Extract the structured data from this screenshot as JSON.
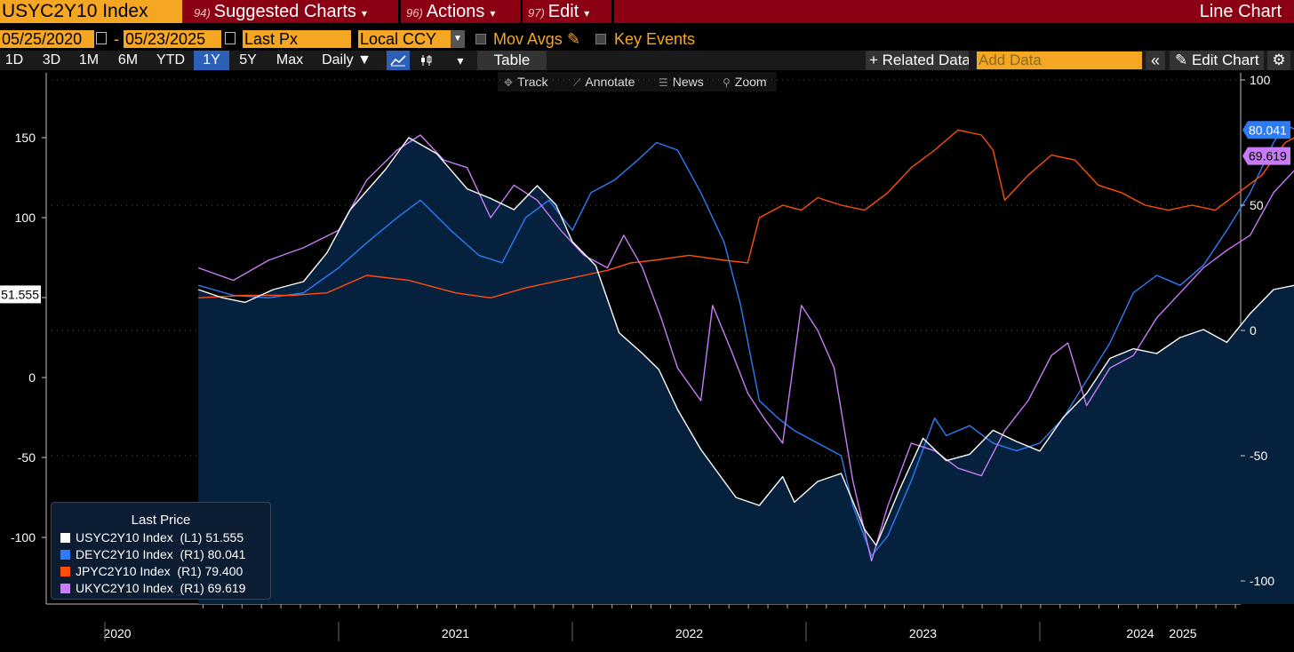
{
  "header": {
    "ticker": "USYC2Y10 Index",
    "menus": [
      {
        "num": "94)",
        "label": "Suggested Charts"
      },
      {
        "num": "96)",
        "label": "Actions"
      },
      {
        "num": "97)",
        "label": "Edit"
      }
    ],
    "chart_type": "Line Chart"
  },
  "options": {
    "start_date": "05/25/2020",
    "end_date": "05/23/2025",
    "date_sep": "-",
    "field": "Last Px",
    "currency": "Local CCY",
    "mov_avgs": "Mov Avgs",
    "key_events": "Key Events"
  },
  "toolbar": {
    "periods": [
      "1D",
      "3D",
      "1M",
      "6M",
      "YTD",
      "1Y",
      "5Y",
      "Max"
    ],
    "active_period": "1Y",
    "frequency": "Daily ▼",
    "table": "Table",
    "related": "+ Related Data",
    "add_data_placeholder": "Add Data",
    "edit_chart": "Edit Chart"
  },
  "tools": [
    {
      "icon": "✥",
      "label": "Track"
    },
    {
      "icon": "⟋",
      "label": "Annotate"
    },
    {
      "icon": "☰",
      "label": "News"
    },
    {
      "icon": "⚲",
      "label": "Zoom"
    }
  ],
  "colors": {
    "us": "#ffffff",
    "de": "#2d7cf6",
    "jp": "#ff4d0d",
    "uk": "#c77cf5",
    "area": "#06213d",
    "accent": "#f5a623",
    "header": "#8b0012"
  },
  "chart_data": {
    "type": "line",
    "title": "Line Chart",
    "x_labels": [
      "2020",
      "2021",
      "2022",
      "2023",
      "2024",
      "2025"
    ],
    "x_start": 2020.4,
    "x_end": 2025.4,
    "left_axis": {
      "ticks": [
        150,
        100,
        50,
        0,
        -50,
        -100
      ],
      "range": [
        -130,
        180
      ]
    },
    "right_axis": {
      "ticks": [
        100,
        50,
        0,
        -50,
        -100
      ],
      "range": [
        -110,
        100
      ]
    },
    "legend_title": "Last Price",
    "last_value_tags": {
      "left": "51.555",
      "right": [
        "80.041",
        "69.619"
      ]
    },
    "series": [
      {
        "name": "USYC2Y10 Index",
        "axis": "L1",
        "last": "51.555",
        "color_key": "us",
        "area": true,
        "points": [
          [
            2020.4,
            55
          ],
          [
            2020.5,
            50
          ],
          [
            2020.6,
            47
          ],
          [
            2020.72,
            55
          ],
          [
            2020.85,
            60
          ],
          [
            2020.95,
            78
          ],
          [
            2021.05,
            105
          ],
          [
            2021.2,
            130
          ],
          [
            2021.3,
            150
          ],
          [
            2021.42,
            140
          ],
          [
            2021.55,
            118
          ],
          [
            2021.65,
            112
          ],
          [
            2021.75,
            105
          ],
          [
            2021.85,
            120
          ],
          [
            2021.93,
            108
          ],
          [
            2022.0,
            85
          ],
          [
            2022.1,
            70
          ],
          [
            2022.2,
            28
          ],
          [
            2022.3,
            15
          ],
          [
            2022.37,
            5
          ],
          [
            2022.45,
            -20
          ],
          [
            2022.55,
            -45
          ],
          [
            2022.7,
            -75
          ],
          [
            2022.8,
            -80
          ],
          [
            2022.9,
            -62
          ],
          [
            2022.95,
            -78
          ],
          [
            2023.05,
            -65
          ],
          [
            2023.15,
            -60
          ],
          [
            2023.25,
            -95
          ],
          [
            2023.3,
            -105
          ],
          [
            2023.4,
            -70
          ],
          [
            2023.5,
            -38
          ],
          [
            2023.6,
            -52
          ],
          [
            2023.7,
            -48
          ],
          [
            2023.8,
            -33
          ],
          [
            2023.9,
            -40
          ],
          [
            2024.0,
            -46
          ],
          [
            2024.1,
            -25
          ],
          [
            2024.2,
            -10
          ],
          [
            2024.3,
            12
          ],
          [
            2024.4,
            18
          ],
          [
            2024.5,
            15
          ],
          [
            2024.6,
            25
          ],
          [
            2024.7,
            30
          ],
          [
            2024.8,
            22
          ],
          [
            2024.9,
            40
          ],
          [
            2025.0,
            55
          ],
          [
            2025.1,
            58
          ],
          [
            2025.2,
            46
          ],
          [
            2025.3,
            52
          ]
        ]
      },
      {
        "name": "DEYC2Y10 Index",
        "axis": "R1",
        "last": "80.041",
        "color_key": "de",
        "points": [
          [
            2020.4,
            18
          ],
          [
            2020.55,
            14
          ],
          [
            2020.7,
            13
          ],
          [
            2020.85,
            15
          ],
          [
            2021.0,
            25
          ],
          [
            2021.12,
            35
          ],
          [
            2021.25,
            45
          ],
          [
            2021.35,
            52
          ],
          [
            2021.48,
            40
          ],
          [
            2021.6,
            30
          ],
          [
            2021.7,
            27
          ],
          [
            2021.8,
            45
          ],
          [
            2021.9,
            52
          ],
          [
            2022.0,
            40
          ],
          [
            2022.08,
            55
          ],
          [
            2022.18,
            60
          ],
          [
            2022.28,
            68
          ],
          [
            2022.36,
            75
          ],
          [
            2022.45,
            72
          ],
          [
            2022.55,
            55
          ],
          [
            2022.65,
            35
          ],
          [
            2022.72,
            10
          ],
          [
            2022.8,
            -28
          ],
          [
            2022.88,
            -35
          ],
          [
            2022.95,
            -40
          ],
          [
            2023.05,
            -45
          ],
          [
            2023.15,
            -50
          ],
          [
            2023.2,
            -70
          ],
          [
            2023.28,
            -90
          ],
          [
            2023.35,
            -82
          ],
          [
            2023.45,
            -60
          ],
          [
            2023.55,
            -35
          ],
          [
            2023.6,
            -42
          ],
          [
            2023.7,
            -38
          ],
          [
            2023.8,
            -45
          ],
          [
            2023.9,
            -48
          ],
          [
            2024.0,
            -45
          ],
          [
            2024.1,
            -35
          ],
          [
            2024.2,
            -20
          ],
          [
            2024.3,
            -5
          ],
          [
            2024.4,
            15
          ],
          [
            2024.5,
            22
          ],
          [
            2024.6,
            18
          ],
          [
            2024.7,
            26
          ],
          [
            2024.8,
            40
          ],
          [
            2024.9,
            55
          ],
          [
            2025.0,
            75
          ],
          [
            2025.05,
            82
          ],
          [
            2025.15,
            78
          ],
          [
            2025.25,
            80
          ],
          [
            2025.3,
            80.041
          ]
        ]
      },
      {
        "name": "JPYC2Y10 Index",
        "axis": "R1",
        "last": "79.400",
        "color_key": "jp",
        "points": [
          [
            2020.4,
            13
          ],
          [
            2020.6,
            14
          ],
          [
            2020.8,
            14
          ],
          [
            2020.95,
            15
          ],
          [
            2021.12,
            22
          ],
          [
            2021.3,
            20
          ],
          [
            2021.5,
            15
          ],
          [
            2021.65,
            13
          ],
          [
            2021.8,
            17
          ],
          [
            2021.95,
            20
          ],
          [
            2022.05,
            22
          ],
          [
            2022.15,
            24
          ],
          [
            2022.25,
            27
          ],
          [
            2022.35,
            28
          ],
          [
            2022.5,
            30
          ],
          [
            2022.65,
            28
          ],
          [
            2022.75,
            27
          ],
          [
            2022.8,
            45
          ],
          [
            2022.9,
            50
          ],
          [
            2022.98,
            48
          ],
          [
            2023.05,
            53
          ],
          [
            2023.15,
            50
          ],
          [
            2023.25,
            48
          ],
          [
            2023.35,
            55
          ],
          [
            2023.45,
            65
          ],
          [
            2023.55,
            72
          ],
          [
            2023.65,
            80
          ],
          [
            2023.75,
            78
          ],
          [
            2023.8,
            72
          ],
          [
            2023.85,
            52
          ],
          [
            2023.95,
            62
          ],
          [
            2024.05,
            70
          ],
          [
            2024.15,
            68
          ],
          [
            2024.25,
            58
          ],
          [
            2024.35,
            55
          ],
          [
            2024.45,
            50
          ],
          [
            2024.55,
            48
          ],
          [
            2024.65,
            50
          ],
          [
            2024.75,
            48
          ],
          [
            2024.85,
            55
          ],
          [
            2024.95,
            62
          ],
          [
            2025.05,
            75
          ],
          [
            2025.15,
            80
          ],
          [
            2025.25,
            82
          ],
          [
            2025.3,
            79.4
          ]
        ]
      },
      {
        "name": "UKYC2Y10 Index",
        "axis": "R1",
        "last": "69.619",
        "color_key": "uk",
        "points": [
          [
            2020.4,
            25
          ],
          [
            2020.55,
            20
          ],
          [
            2020.7,
            28
          ],
          [
            2020.85,
            33
          ],
          [
            2021.0,
            40
          ],
          [
            2021.12,
            60
          ],
          [
            2021.25,
            72
          ],
          [
            2021.35,
            78
          ],
          [
            2021.45,
            68
          ],
          [
            2021.55,
            65
          ],
          [
            2021.65,
            45
          ],
          [
            2021.75,
            58
          ],
          [
            2021.85,
            52
          ],
          [
            2021.95,
            40
          ],
          [
            2022.05,
            30
          ],
          [
            2022.15,
            25
          ],
          [
            2022.22,
            38
          ],
          [
            2022.3,
            25
          ],
          [
            2022.38,
            5
          ],
          [
            2022.45,
            -15
          ],
          [
            2022.55,
            -28
          ],
          [
            2022.6,
            10
          ],
          [
            2022.68,
            -8
          ],
          [
            2022.75,
            -25
          ],
          [
            2022.82,
            -35
          ],
          [
            2022.9,
            -45
          ],
          [
            2022.98,
            10
          ],
          [
            2023.05,
            0
          ],
          [
            2023.12,
            -15
          ],
          [
            2023.2,
            -60
          ],
          [
            2023.28,
            -92
          ],
          [
            2023.35,
            -70
          ],
          [
            2023.45,
            -45
          ],
          [
            2023.55,
            -48
          ],
          [
            2023.65,
            -55
          ],
          [
            2023.75,
            -58
          ],
          [
            2023.85,
            -40
          ],
          [
            2023.95,
            -28
          ],
          [
            2024.05,
            -10
          ],
          [
            2024.12,
            -5
          ],
          [
            2024.2,
            -30
          ],
          [
            2024.3,
            -15
          ],
          [
            2024.4,
            -10
          ],
          [
            2024.5,
            5
          ],
          [
            2024.6,
            15
          ],
          [
            2024.7,
            25
          ],
          [
            2024.8,
            32
          ],
          [
            2024.9,
            38
          ],
          [
            2025.0,
            55
          ],
          [
            2025.1,
            65
          ],
          [
            2025.2,
            70
          ],
          [
            2025.3,
            69.619
          ]
        ]
      }
    ]
  }
}
